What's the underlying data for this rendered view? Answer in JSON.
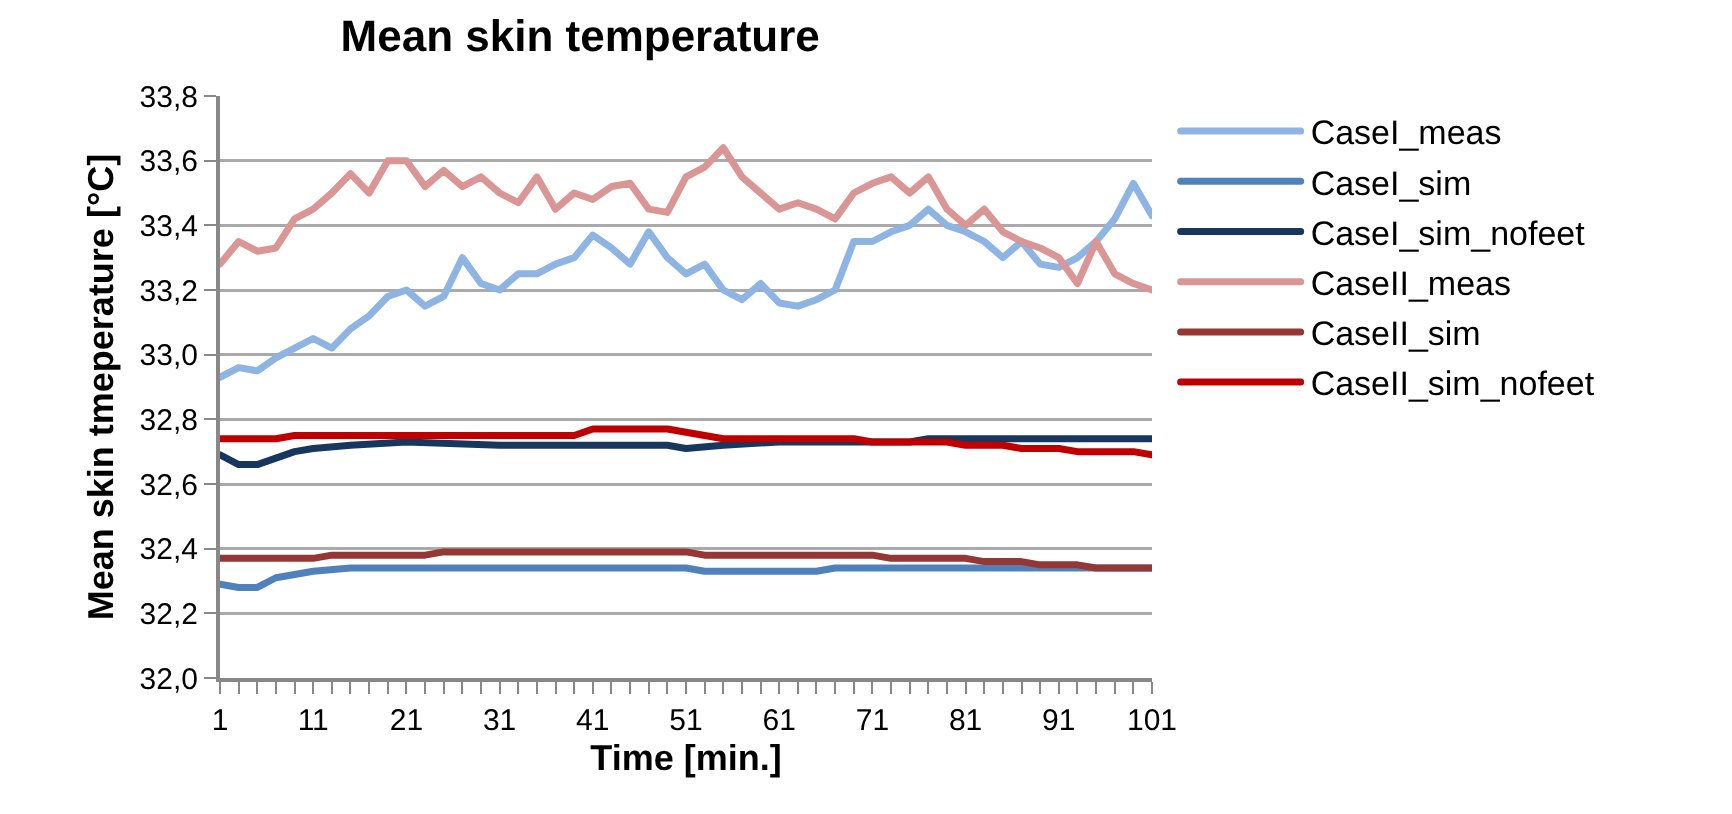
{
  "chart_data": {
    "type": "line",
    "title": "Mean skin temperature",
    "xlabel": "Time [min.]",
    "ylabel": "Mean skin tmeperature [°C]",
    "x": [
      1,
      3,
      5,
      7,
      9,
      11,
      13,
      15,
      17,
      19,
      21,
      23,
      25,
      27,
      29,
      31,
      33,
      35,
      37,
      39,
      41,
      43,
      45,
      47,
      49,
      51,
      53,
      55,
      57,
      59,
      61,
      63,
      65,
      67,
      69,
      71,
      73,
      75,
      77,
      79,
      81,
      83,
      85,
      87,
      89,
      91,
      93,
      95,
      97,
      99,
      101
    ],
    "series": [
      {
        "name": "CaseI_meas",
        "color": "#8db4e2",
        "values": [
          32.93,
          32.96,
          32.95,
          32.99,
          33.02,
          33.05,
          33.02,
          33.08,
          33.12,
          33.18,
          33.2,
          33.15,
          33.18,
          33.3,
          33.22,
          33.2,
          33.25,
          33.25,
          33.28,
          33.3,
          33.37,
          33.33,
          33.28,
          33.38,
          33.3,
          33.25,
          33.28,
          33.2,
          33.17,
          33.22,
          33.16,
          33.15,
          33.17,
          33.2,
          33.35,
          33.35,
          33.38,
          33.4,
          33.45,
          33.4,
          33.38,
          33.35,
          33.3,
          33.35,
          33.28,
          33.27,
          33.3,
          33.35,
          33.42,
          33.53,
          33.43
        ]
      },
      {
        "name": "CaseI_sim",
        "color": "#4f81bd",
        "x": [
          1,
          3,
          5,
          7,
          9,
          11,
          15,
          51,
          53,
          65,
          67,
          101
        ],
        "values": [
          32.29,
          32.28,
          32.28,
          32.31,
          32.32,
          32.33,
          32.34,
          32.34,
          32.33,
          32.33,
          32.34,
          32.34
        ]
      },
      {
        "name": "CaseI_sim_nofeet",
        "color": "#17375e",
        "x": [
          1,
          3,
          5,
          7,
          9,
          11,
          15,
          21,
          31,
          49,
          51,
          55,
          61,
          75,
          77,
          101
        ],
        "values": [
          32.69,
          32.66,
          32.66,
          32.68,
          32.7,
          32.71,
          32.72,
          32.73,
          32.72,
          32.72,
          32.71,
          32.72,
          32.73,
          32.73,
          32.74,
          32.74
        ]
      },
      {
        "name": "CaseII_meas",
        "color": "#d99694",
        "values": [
          33.28,
          33.35,
          33.32,
          33.33,
          33.42,
          33.45,
          33.5,
          33.56,
          33.5,
          33.6,
          33.6,
          33.52,
          33.57,
          33.52,
          33.55,
          33.5,
          33.47,
          33.55,
          33.45,
          33.5,
          33.48,
          33.52,
          33.53,
          33.45,
          33.44,
          33.55,
          33.58,
          33.64,
          33.55,
          33.5,
          33.45,
          33.47,
          33.45,
          33.42,
          33.5,
          33.53,
          33.55,
          33.5,
          33.55,
          33.45,
          33.4,
          33.45,
          33.38,
          33.35,
          33.33,
          33.3,
          33.22,
          33.35,
          33.25,
          33.22,
          33.2
        ]
      },
      {
        "name": "CaseII_sim",
        "color": "#953735",
        "x": [
          1,
          11,
          13,
          23,
          25,
          51,
          53,
          71,
          73,
          81,
          83,
          87,
          89,
          93,
          95,
          101
        ],
        "values": [
          32.37,
          32.37,
          32.38,
          32.38,
          32.39,
          32.39,
          32.38,
          32.38,
          32.37,
          32.37,
          32.36,
          32.36,
          32.35,
          32.35,
          32.34,
          32.34
        ]
      },
      {
        "name": "CaseII_sim_nofeet",
        "color": "#c00000",
        "x": [
          1,
          7,
          9,
          39,
          41,
          49,
          51,
          53,
          55,
          69,
          71,
          79,
          81,
          85,
          87,
          91,
          93,
          99,
          101
        ],
        "values": [
          32.74,
          32.74,
          32.75,
          32.75,
          32.77,
          32.77,
          32.76,
          32.75,
          32.74,
          32.74,
          32.73,
          32.73,
          32.72,
          32.72,
          32.71,
          32.71,
          32.7,
          32.7,
          32.69
        ]
      }
    ],
    "xlim": [
      1,
      101
    ],
    "xticks": [
      1,
      {
        "value": 3,
        "label": null
      },
      {
        "value": 5,
        "label": null
      },
      {
        "value": 7,
        "label": null
      },
      {
        "value": 9,
        "label": null
      },
      11,
      {
        "value": 13,
        "label": null
      },
      {
        "value": 15,
        "label": null
      },
      {
        "value": 17,
        "label": null
      },
      {
        "value": 19,
        "label": null
      },
      21,
      {
        "value": 23,
        "label": null
      },
      {
        "value": 25,
        "label": null
      },
      {
        "value": 27,
        "label": null
      },
      {
        "value": 29,
        "label": null
      },
      31,
      {
        "value": 33,
        "label": null
      },
      {
        "value": 35,
        "label": null
      },
      {
        "value": 37,
        "label": null
      },
      {
        "value": 39,
        "label": null
      },
      41,
      {
        "value": 43,
        "label": null
      },
      {
        "value": 45,
        "label": null
      },
      {
        "value": 47,
        "label": null
      },
      {
        "value": 49,
        "label": null
      },
      51,
      {
        "value": 53,
        "label": null
      },
      {
        "value": 55,
        "label": null
      },
      {
        "value": 57,
        "label": null
      },
      {
        "value": 59,
        "label": null
      },
      61,
      {
        "value": 63,
        "label": null
      },
      {
        "value": 65,
        "label": null
      },
      {
        "value": 67,
        "label": null
      },
      {
        "value": 69,
        "label": null
      },
      71,
      {
        "value": 73,
        "label": null
      },
      {
        "value": 75,
        "label": null
      },
      {
        "value": 77,
        "label": null
      },
      {
        "value": 79,
        "label": null
      },
      81,
      {
        "value": 83,
        "label": null
      },
      {
        "value": 85,
        "label": null
      },
      {
        "value": 87,
        "label": null
      },
      {
        "value": 89,
        "label": null
      },
      91,
      {
        "value": 93,
        "label": null
      },
      {
        "value": 95,
        "label": null
      },
      {
        "value": 97,
        "label": null
      },
      {
        "value": 99,
        "label": null
      },
      101
    ],
    "ylim": [
      32.0,
      33.8
    ],
    "yticks": [
      {
        "value": 32.0,
        "label": "32,0"
      },
      {
        "value": 32.2,
        "label": "32,2"
      },
      {
        "value": 32.4,
        "label": "32,4"
      },
      {
        "value": 32.6,
        "label": "32,6"
      },
      {
        "value": 32.8,
        "label": "32,8"
      },
      {
        "value": 33.0,
        "label": "33,0"
      },
      {
        "value": 33.2,
        "label": "33,2"
      },
      {
        "value": 33.4,
        "label": "33,4"
      },
      {
        "value": 33.6,
        "label": "33,6"
      },
      {
        "value": 33.8,
        "label": "33,8"
      }
    ],
    "grid": "y",
    "legend": "right",
    "marker": "none",
    "line_style": "solid"
  }
}
